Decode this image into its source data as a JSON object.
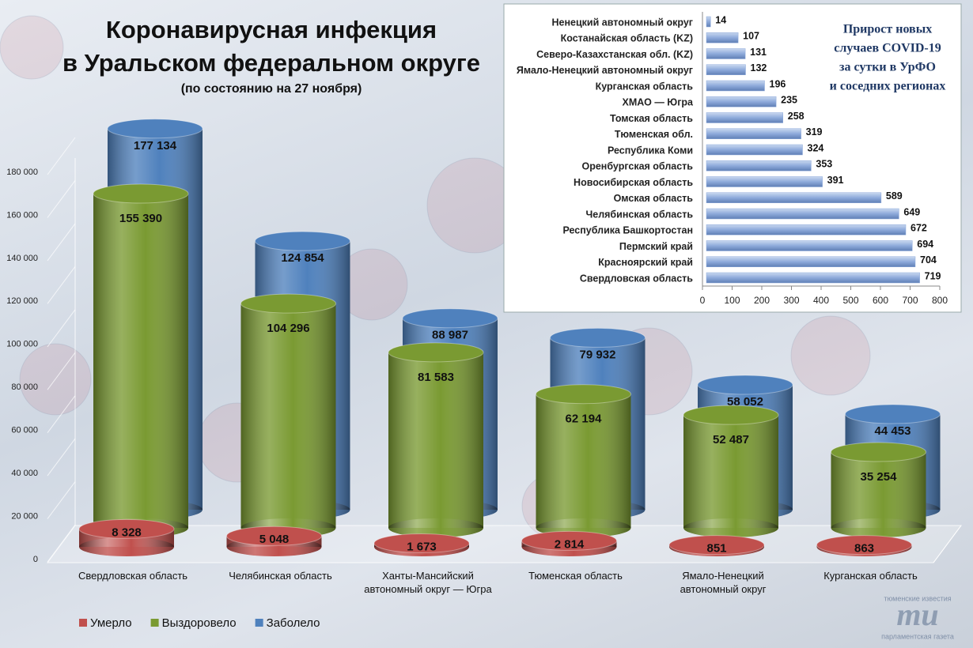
{
  "chart_data": [
    {
      "type": "bar",
      "orientation": "vertical",
      "title_lines": [
        "Коронавирусная инфекция",
        "в Уральском федеральном округе"
      ],
      "subtitle": "(по состоянию на 27 ноября)",
      "categories": [
        "Свердловская область",
        "Челябинская область",
        "Ханты-Мансийский автономный округ — Югра",
        "Тюменская область",
        "Ямало-Ненецкий автономный округ",
        "Курганская область"
      ],
      "series": [
        {
          "name": "Умерло",
          "color": "#c0504d",
          "values": [
            8328,
            5048,
            1673,
            2814,
            851,
            863
          ],
          "value_labels": [
            "8 328",
            "5 048",
            "1 673",
            "2 814",
            "851",
            "863"
          ]
        },
        {
          "name": "Выздоровело",
          "color": "#7a9a32",
          "values": [
            155390,
            104296,
            81583,
            62194,
            52487,
            35254
          ],
          "value_labels": [
            "155 390",
            "104 296",
            "81 583",
            "62 194",
            "52 487",
            "35 254"
          ]
        },
        {
          "name": "Заболело",
          "color": "#4f81bd",
          "values": [
            177134,
            124854,
            88987,
            79932,
            58052,
            44453
          ],
          "value_labels": [
            "177 134",
            "124 854",
            "88 987",
            "79 932",
            "58 052",
            "44 453"
          ]
        }
      ],
      "ylim": [
        0,
        180000
      ],
      "yticks": [
        0,
        {
          "value": 20000,
          "label": "20 000"
        },
        {
          "value": 40000,
          "label": "40 000"
        },
        {
          "value": 60000,
          "label": "60 000"
        },
        {
          "value": 80000,
          "label": "80 000"
        },
        {
          "value": 100000,
          "label": "100 000"
        },
        {
          "value": 120000,
          "label": "120 000"
        },
        {
          "value": 140000,
          "label": "140 000"
        },
        {
          "value": 160000,
          "label": "160 000"
        },
        {
          "value": 180000,
          "label": "180 000"
        }
      ],
      "legend": "bottom-left"
    },
    {
      "type": "bar",
      "orientation": "horizontal",
      "title_lines": [
        "Прирост новых",
        "случаев COVID-19",
        "за сутки в УрФО",
        "и соседних регионах"
      ],
      "categories": [
        "Ненецкий автономный округ",
        "Костанайская область (KZ)",
        "Северо-Казахстанская обл. (KZ)",
        "Ямало-Ненецкий автономный округ",
        "Курганская область",
        "ХМАО — Югра",
        "Томская область",
        "Тюменская обл.",
        "Республика Коми",
        "Оренбургская область",
        "Новосибирская область",
        "Омская область",
        "Челябинская область",
        "Республика Башкортостан",
        "Пермский край",
        "Красноярский край",
        "Свердловская область"
      ],
      "values": [
        14,
        107,
        131,
        132,
        196,
        235,
        258,
        319,
        324,
        353,
        391,
        589,
        649,
        672,
        694,
        704,
        719
      ],
      "color": "#8eaadb",
      "xlim": [
        0,
        800
      ],
      "xticks": [
        0,
        100,
        200,
        300,
        400,
        500,
        600,
        700,
        800
      ]
    }
  ],
  "logo": {
    "top": "тюменские известия",
    "mark": "ти",
    "bottom": "парламентская газета"
  }
}
